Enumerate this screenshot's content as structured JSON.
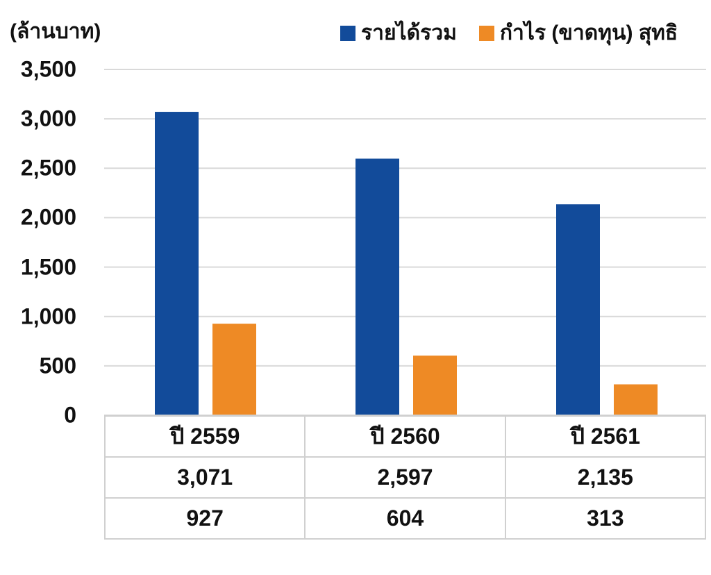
{
  "unit_label": "(ล้านบาท)",
  "legend": [
    {
      "label": "รายได้รวม",
      "color": "#124b9a"
    },
    {
      "label": "กำไร (ขาดทุน) สุทธิ",
      "color": "#ee8a25"
    }
  ],
  "chart_data": {
    "type": "bar",
    "categories": [
      "ปี 2559",
      "ปี 2560",
      "ปี 2561"
    ],
    "series": [
      {
        "name": "รายได้รวม",
        "values": [
          3071,
          2597,
          2135
        ],
        "color": "#124b9a"
      },
      {
        "name": "กำไร (ขาดทุน) สุทธิ",
        "values": [
          927,
          604,
          313
        ],
        "color": "#ee8a25"
      }
    ],
    "ylim": [
      0,
      3500
    ],
    "yticks": [
      "0",
      "500",
      "1,000",
      "1,500",
      "2,000",
      "2,500",
      "3,000",
      "3,500"
    ],
    "grid": true,
    "legend_position": "top-right"
  },
  "table": {
    "rows": [
      [
        "ปี 2559",
        "ปี 2560",
        "ปี 2561"
      ],
      [
        "3,071",
        "2,597",
        "2,135"
      ],
      [
        "927",
        "604",
        "313"
      ]
    ]
  }
}
